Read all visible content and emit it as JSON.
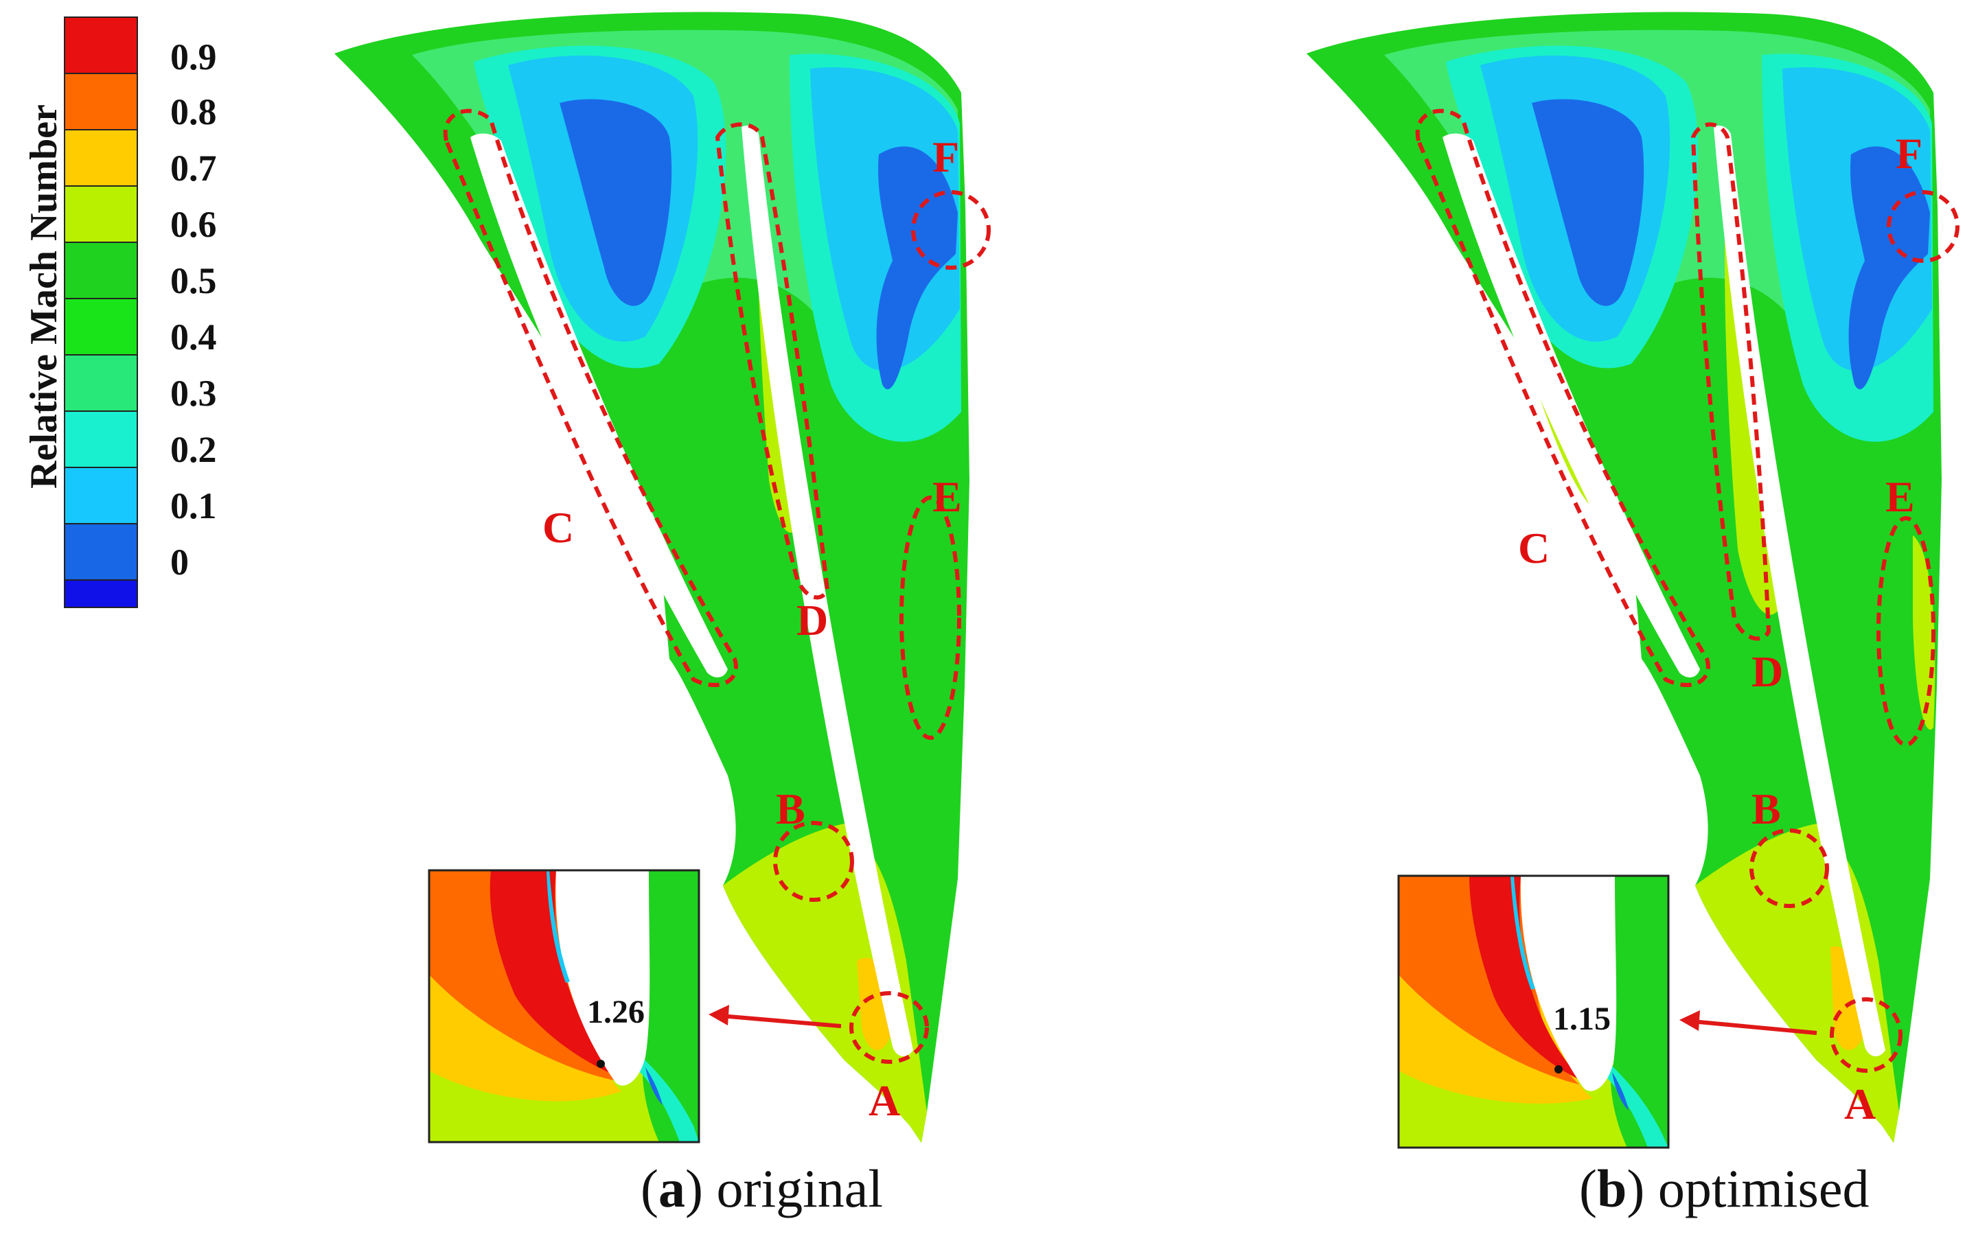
{
  "colorbar": {
    "title": "Relative Mach Number",
    "levels": [
      "0.9",
      "0.8",
      "0.7",
      "0.6",
      "0.5",
      "0.4",
      "0.3",
      "0.2",
      "0.1",
      "0"
    ],
    "colors": [
      "#e81010",
      "#ff6a00",
      "#ffcc00",
      "#b9f000",
      "#1fd21f",
      "#19e419",
      "#28e87a",
      "#19f0d0",
      "#17c8ff",
      "#1767e6",
      "#1010e8"
    ]
  },
  "panels": [
    {
      "caption_letter": "a",
      "caption_text": "original",
      "inset_value": "1.26",
      "zones": [
        "A",
        "B",
        "C",
        "D",
        "E",
        "F"
      ]
    },
    {
      "caption_letter": "b",
      "caption_text": "optimised",
      "inset_value": "1.15",
      "zones": [
        "A",
        "B",
        "C",
        "D",
        "E",
        "F"
      ]
    }
  ],
  "palette": {
    "green": "#1fd21f",
    "light_green": "#40e870",
    "cyan": "#19f0c8",
    "sky": "#19c8f5",
    "blue": "#1a6ae8",
    "yellow_green": "#b9f000",
    "yellow": "#ffcc00",
    "orange": "#ff6a00",
    "red": "#e81010",
    "annotation": "#e01818"
  }
}
